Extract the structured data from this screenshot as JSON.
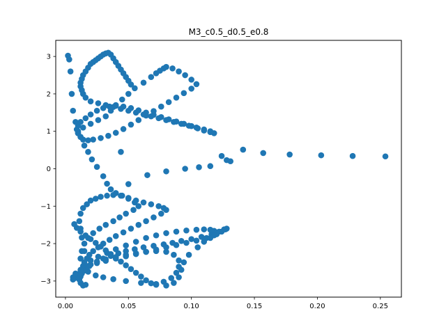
{
  "chart_data": {
    "type": "scatter",
    "title": "M3_c0.5_d0.5_e0.8",
    "xlabel": "",
    "ylabel": "",
    "xlim": [
      -0.0077,
      0.2667
    ],
    "ylim": [
      -3.43,
      3.43
    ],
    "xticks": [
      0.0,
      0.05,
      0.1,
      0.15,
      0.2,
      0.25
    ],
    "xtick_labels": [
      "0.00",
      "0.05",
      "0.10",
      "0.15",
      "0.20",
      "0.25"
    ],
    "yticks": [
      -3,
      -2,
      -1,
      0,
      1,
      2,
      3
    ],
    "ytick_labels": [
      "−3",
      "−2",
      "−1",
      "0",
      "1",
      "2",
      "3"
    ],
    "grid": false,
    "legend": "none",
    "marker_color": "#1f77b4",
    "series": [
      {
        "name": "",
        "x": [
          0.254,
          0.228,
          0.203,
          0.178,
          0.157,
          0.141,
          0.131,
          0.128,
          0.124,
          0.115,
          0.106,
          0.095,
          0.08,
          0.065,
          0.05,
          0.044,
          0.002,
          0.003,
          0.004,
          0.005,
          0.006,
          0.008,
          0.01,
          0.012,
          0.015,
          0.018,
          0.021,
          0.025,
          0.03,
          0.033,
          0.036,
          0.04,
          0.045,
          0.05,
          0.055,
          0.058,
          0.054,
          0.048,
          0.043,
          0.038,
          0.032,
          0.027,
          0.022,
          0.018,
          0.015,
          0.013,
          0.012,
          0.014,
          0.018,
          0.024,
          0.03,
          0.038,
          0.048,
          0.06,
          0.072,
          0.08,
          0.086,
          0.09,
          0.092,
          0.094,
          0.098,
          0.105,
          0.11,
          0.115,
          0.12,
          0.124,
          0.127,
          0.128,
          0.126,
          0.122,
          0.116,
          0.108,
          0.1,
          0.092,
          0.085,
          0.078,
          0.07,
          0.062,
          0.055,
          0.048,
          0.042,
          0.036,
          0.03,
          0.025,
          0.02,
          0.017,
          0.015,
          0.013,
          0.012,
          0.011,
          0.012,
          0.014,
          0.016,
          0.015,
          0.013,
          0.012,
          0.011,
          0.012,
          0.014,
          0.017,
          0.02,
          0.024,
          0.028,
          0.033,
          0.038,
          0.044,
          0.05,
          0.056,
          0.062,
          0.068,
          0.074,
          0.078,
          0.08,
          0.076,
          0.07,
          0.064,
          0.058,
          0.052,
          0.046,
          0.04,
          0.035,
          0.03,
          0.026,
          0.022,
          0.019,
          0.017,
          0.015,
          0.02,
          0.026,
          0.033,
          0.04,
          0.048,
          0.056,
          0.064,
          0.072,
          0.08,
          0.088,
          0.096,
          0.104,
          0.11,
          0.115,
          0.118,
          0.12,
          0.118,
          0.112,
          0.104,
          0.096,
          0.088,
          0.08,
          0.072,
          0.064,
          0.056,
          0.048,
          0.04,
          0.032,
          0.025,
          0.019,
          0.014,
          0.011,
          0.009,
          0.007,
          0.006,
          0.006,
          0.008,
          0.012,
          0.018,
          0.025,
          0.032,
          0.04,
          0.048,
          0.056,
          0.064,
          0.072,
          0.08,
          0.086,
          0.09,
          0.09,
          0.088,
          0.084,
          0.078,
          0.072,
          0.068,
          0.064,
          0.06,
          0.056,
          0.052,
          0.048,
          0.044,
          0.04,
          0.036,
          0.032,
          0.028,
          0.024,
          0.02,
          0.016,
          0.012,
          0.009,
          0.007,
          0.01,
          0.014,
          0.02,
          0.026,
          0.032,
          0.036,
          0.04,
          0.045,
          0.05,
          0.055,
          0.062,
          0.068,
          0.072,
          0.075,
          0.078,
          0.08,
          0.085,
          0.09,
          0.095,
          0.1,
          0.104,
          0.1,
          0.094,
          0.088,
          0.082,
          0.076,
          0.07,
          0.064,
          0.058,
          0.052,
          0.046,
          0.04,
          0.034,
          0.028,
          0.022,
          0.018,
          0.014,
          0.012,
          0.01,
          0.009,
          0.01,
          0.012,
          0.016,
          0.02,
          0.025,
          0.03,
          0.035,
          0.04,
          0.046,
          0.052,
          0.058,
          0.064,
          0.07,
          0.076,
          0.082,
          0.088,
          0.094,
          0.1,
          0.105,
          0.11,
          0.115,
          0.118,
          0.115,
          0.11,
          0.104,
          0.098,
          0.092,
          0.086,
          0.08,
          0.074,
          0.068,
          0.062,
          0.056,
          0.05,
          0.044,
          0.038,
          0.032,
          0.026,
          0.02,
          0.016,
          0.014,
          0.013,
          0.012,
          0.012,
          0.013,
          0.014,
          0.016,
          0.018,
          0.02,
          0.022,
          0.024,
          0.026,
          0.028,
          0.03,
          0.032,
          0.034,
          0.036,
          0.038,
          0.04,
          0.042,
          0.044,
          0.046,
          0.048,
          0.05,
          0.052
        ],
        "y": [
          0.33,
          0.34,
          0.36,
          0.38,
          0.42,
          0.51,
          0.2,
          0.23,
          0.34,
          0.07,
          0.04,
          0.0,
          -0.07,
          -0.17,
          -0.41,
          0.45,
          3.02,
          2.92,
          2.6,
          2.0,
          1.55,
          1.25,
          0.95,
          0.85,
          0.62,
          0.45,
          0.25,
          0.05,
          -0.2,
          -0.4,
          -0.55,
          -0.65,
          -0.72,
          -0.8,
          -0.9,
          -1.0,
          -1.1,
          -1.2,
          -1.3,
          -1.4,
          -1.5,
          -1.6,
          -1.72,
          -1.85,
          -2.0,
          -2.2,
          -2.4,
          -2.6,
          -2.75,
          -2.85,
          -2.9,
          -2.95,
          -3.0,
          -3.05,
          -3.1,
          -3.12,
          -3.05,
          -2.9,
          -2.7,
          -2.5,
          -2.3,
          -2.1,
          -1.95,
          -1.85,
          -1.75,
          -1.68,
          -1.62,
          -1.6,
          -1.62,
          -1.68,
          -1.75,
          -1.82,
          -1.88,
          -1.93,
          -1.98,
          -2.02,
          -2.06,
          -2.1,
          -2.15,
          -2.2,
          -2.26,
          -2.33,
          -2.4,
          -2.48,
          -2.56,
          -2.64,
          -2.72,
          -2.8,
          -2.88,
          -2.96,
          -3.05,
          -3.12,
          -3.1,
          -2.2,
          -1.84,
          -1.6,
          -1.4,
          -1.2,
          -1.05,
          -0.95,
          -0.85,
          -0.8,
          -0.75,
          -0.72,
          -0.7,
          -0.72,
          -0.78,
          -0.85,
          -0.9,
          -0.95,
          -1.0,
          -1.05,
          -1.1,
          -1.2,
          -1.3,
          -1.4,
          -1.5,
          -1.6,
          -1.7,
          -1.8,
          -1.9,
          -2.0,
          -2.1,
          -2.2,
          -2.3,
          -2.4,
          -2.5,
          -2.45,
          -2.35,
          -2.25,
          -2.15,
          -2.05,
          -1.95,
          -1.85,
          -1.78,
          -1.72,
          -1.68,
          -1.65,
          -1.63,
          -1.62,
          -1.63,
          -1.66,
          -1.7,
          -1.78,
          -1.85,
          -1.92,
          -1.98,
          -2.04,
          -2.1,
          -2.16,
          -2.22,
          -2.28,
          -2.34,
          -2.4,
          -2.46,
          -2.52,
          -2.6,
          -2.7,
          -2.8,
          -2.88,
          -2.93,
          -2.96,
          -2.9,
          -2.8,
          -2.7,
          -2.6,
          -2.5,
          -2.42,
          -2.36,
          -2.3,
          -2.26,
          -2.22,
          -2.2,
          -2.22,
          -2.3,
          -2.45,
          -2.62,
          -2.78,
          -2.92,
          -3.02,
          -3.08,
          -3.06,
          -2.98,
          -2.88,
          -2.78,
          -2.68,
          -2.58,
          -2.48,
          -2.38,
          -2.28,
          -2.18,
          -2.08,
          -1.98,
          -1.88,
          -1.78,
          -1.68,
          -1.58,
          -1.48,
          1.0,
          1.1,
          1.2,
          1.3,
          1.4,
          1.55,
          1.7,
          1.85,
          2.0,
          2.15,
          2.3,
          2.45,
          2.55,
          2.62,
          2.68,
          2.72,
          2.68,
          2.6,
          2.5,
          2.38,
          2.26,
          2.14,
          2.02,
          1.9,
          1.78,
          1.66,
          1.54,
          1.42,
          1.3,
          1.18,
          1.06,
          0.96,
          0.88,
          0.82,
          0.78,
          0.76,
          0.78,
          0.85,
          0.95,
          1.05,
          1.15,
          1.25,
          1.35,
          1.45,
          1.55,
          1.62,
          1.66,
          1.68,
          1.66,
          1.62,
          1.56,
          1.5,
          1.44,
          1.38,
          1.32,
          1.26,
          1.2,
          1.14,
          1.08,
          1.02,
          0.98,
          0.95,
          1.0,
          1.05,
          1.1,
          1.15,
          1.2,
          1.25,
          1.3,
          1.35,
          1.4,
          1.45,
          1.5,
          1.55,
          1.6,
          1.65,
          1.7,
          1.75,
          1.8,
          1.9,
          2.0,
          2.1,
          2.2,
          2.3,
          2.4,
          2.5,
          2.6,
          2.7,
          2.8,
          2.85,
          2.9,
          2.95,
          3.0,
          3.05,
          3.08,
          3.1,
          3.05,
          2.95,
          2.85,
          2.75,
          2.65,
          2.55,
          2.45,
          2.35,
          2.25
        ]
      }
    ]
  }
}
